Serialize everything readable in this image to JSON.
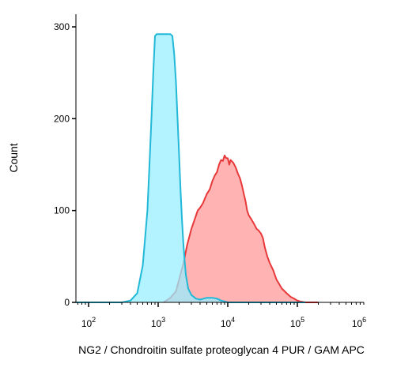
{
  "chart_data": {
    "type": "area",
    "title": "",
    "xlabel": "NG2 / Chondroitin sulfate proteoglycan 4 PUR / GAM APC",
    "ylabel": "Count",
    "x_scale": "log",
    "xlim": [
      50,
      130000
    ],
    "ylim": [
      0,
      300
    ],
    "grid": false,
    "legend": "none",
    "x_ticks": [
      {
        "value": 100,
        "base": "10",
        "exp": "2"
      },
      {
        "value": 1000,
        "base": "10",
        "exp": "3"
      },
      {
        "value": 10000,
        "base": "10",
        "exp": "4"
      },
      {
        "value": 100000,
        "base": "10",
        "exp": "5"
      },
      {
        "value": 1000000,
        "base": "10",
        "exp": "6"
      }
    ],
    "y_ticks": [
      {
        "value": 0,
        "label": "0"
      },
      {
        "value": 100,
        "label": "100"
      },
      {
        "value": 200,
        "label": "200"
      },
      {
        "value": 300,
        "label": "300"
      }
    ],
    "series": [
      {
        "fill": "#ff9999",
        "stroke": "#e8393a",
        "x": [
          1200,
          1500,
          1800,
          2000,
          2300,
          2600,
          3000,
          3400,
          3700,
          4000,
          4400,
          5000,
          5500,
          6000,
          6500,
          7000,
          7500,
          8000,
          8500,
          9000,
          9500,
          10000,
          10500,
          11000,
          12000,
          13000,
          14000,
          15000,
          16000,
          17000,
          18000,
          19000,
          20000,
          22000,
          24000,
          26000,
          28000,
          30000,
          32000,
          34000,
          37000,
          40000,
          45000,
          50000,
          60000,
          70000,
          80000,
          90000,
          100000,
          110000,
          130000,
          150000,
          200000
        ],
        "values": [
          0,
          5,
          12,
          25,
          42,
          62,
          80,
          92,
          100,
          103,
          108,
          118,
          123,
          132,
          138,
          142,
          150,
          155,
          154,
          160,
          157,
          157,
          150,
          155,
          152,
          147,
          140,
          135,
          127,
          118,
          110,
          100,
          95,
          90,
          85,
          80,
          78,
          75,
          70,
          60,
          50,
          43,
          35,
          25,
          15,
          10,
          6,
          4,
          2,
          1,
          0,
          0,
          0
        ]
      },
      {
        "fill": "#99eeff",
        "stroke": "#22b8d8",
        "x": [
          50,
          300,
          400,
          500,
          600,
          700,
          750,
          800,
          850,
          900,
          950,
          1000,
          1100,
          1200,
          1300,
          1400,
          1500,
          1600,
          1700,
          1800,
          1900,
          2000,
          2100,
          2200,
          2300,
          2400,
          2500,
          2700,
          3000,
          3500,
          4000,
          5000,
          6000,
          7000,
          8000,
          9000,
          10000,
          12000,
          130000
        ],
        "values": [
          0,
          0,
          2,
          10,
          40,
          100,
          150,
          200,
          250,
          290,
          292,
          292,
          292,
          292,
          292,
          292,
          292,
          290,
          270,
          240,
          200,
          160,
          120,
          90,
          65,
          45,
          30,
          15,
          8,
          4,
          3,
          5,
          5,
          4,
          2,
          1,
          0,
          0,
          0
        ]
      }
    ]
  }
}
